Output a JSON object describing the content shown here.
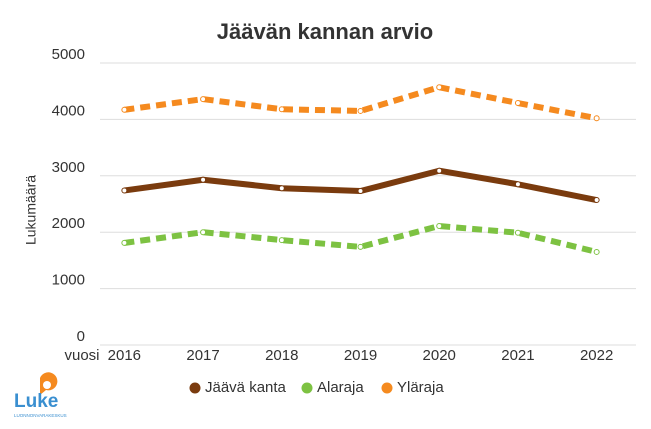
{
  "chart_data": {
    "type": "line",
    "title": "Jäävän kannan arvio",
    "y_label": "Lukumäärä",
    "x_label": "vuosi",
    "categories": [
      "2016",
      "2017",
      "2018",
      "2019",
      "2020",
      "2021",
      "2022"
    ],
    "series": [
      {
        "name": "Jäävä kanta",
        "color": "#7a3b0e",
        "dashed": false,
        "values": [
          2740,
          2930,
          2780,
          2730,
          3090,
          2850,
          2570
        ]
      },
      {
        "name": "Alaraja",
        "color": "#7dc242",
        "dashed": true,
        "values": [
          1810,
          2000,
          1860,
          1740,
          2110,
          1990,
          1650
        ]
      },
      {
        "name": "Yläraja",
        "color": "#f58a1f",
        "dashed": true,
        "values": [
          4170,
          4360,
          4180,
          4150,
          4570,
          4290,
          4020
        ]
      }
    ],
    "ylim": [
      0,
      5000
    ],
    "yticks": [
      0,
      1000,
      2000,
      3000,
      4000,
      5000
    ],
    "grid": true,
    "legend": "bottom"
  },
  "logo": {
    "name": "Luke",
    "subtitle": "LUONNONVARAKESKUS"
  }
}
